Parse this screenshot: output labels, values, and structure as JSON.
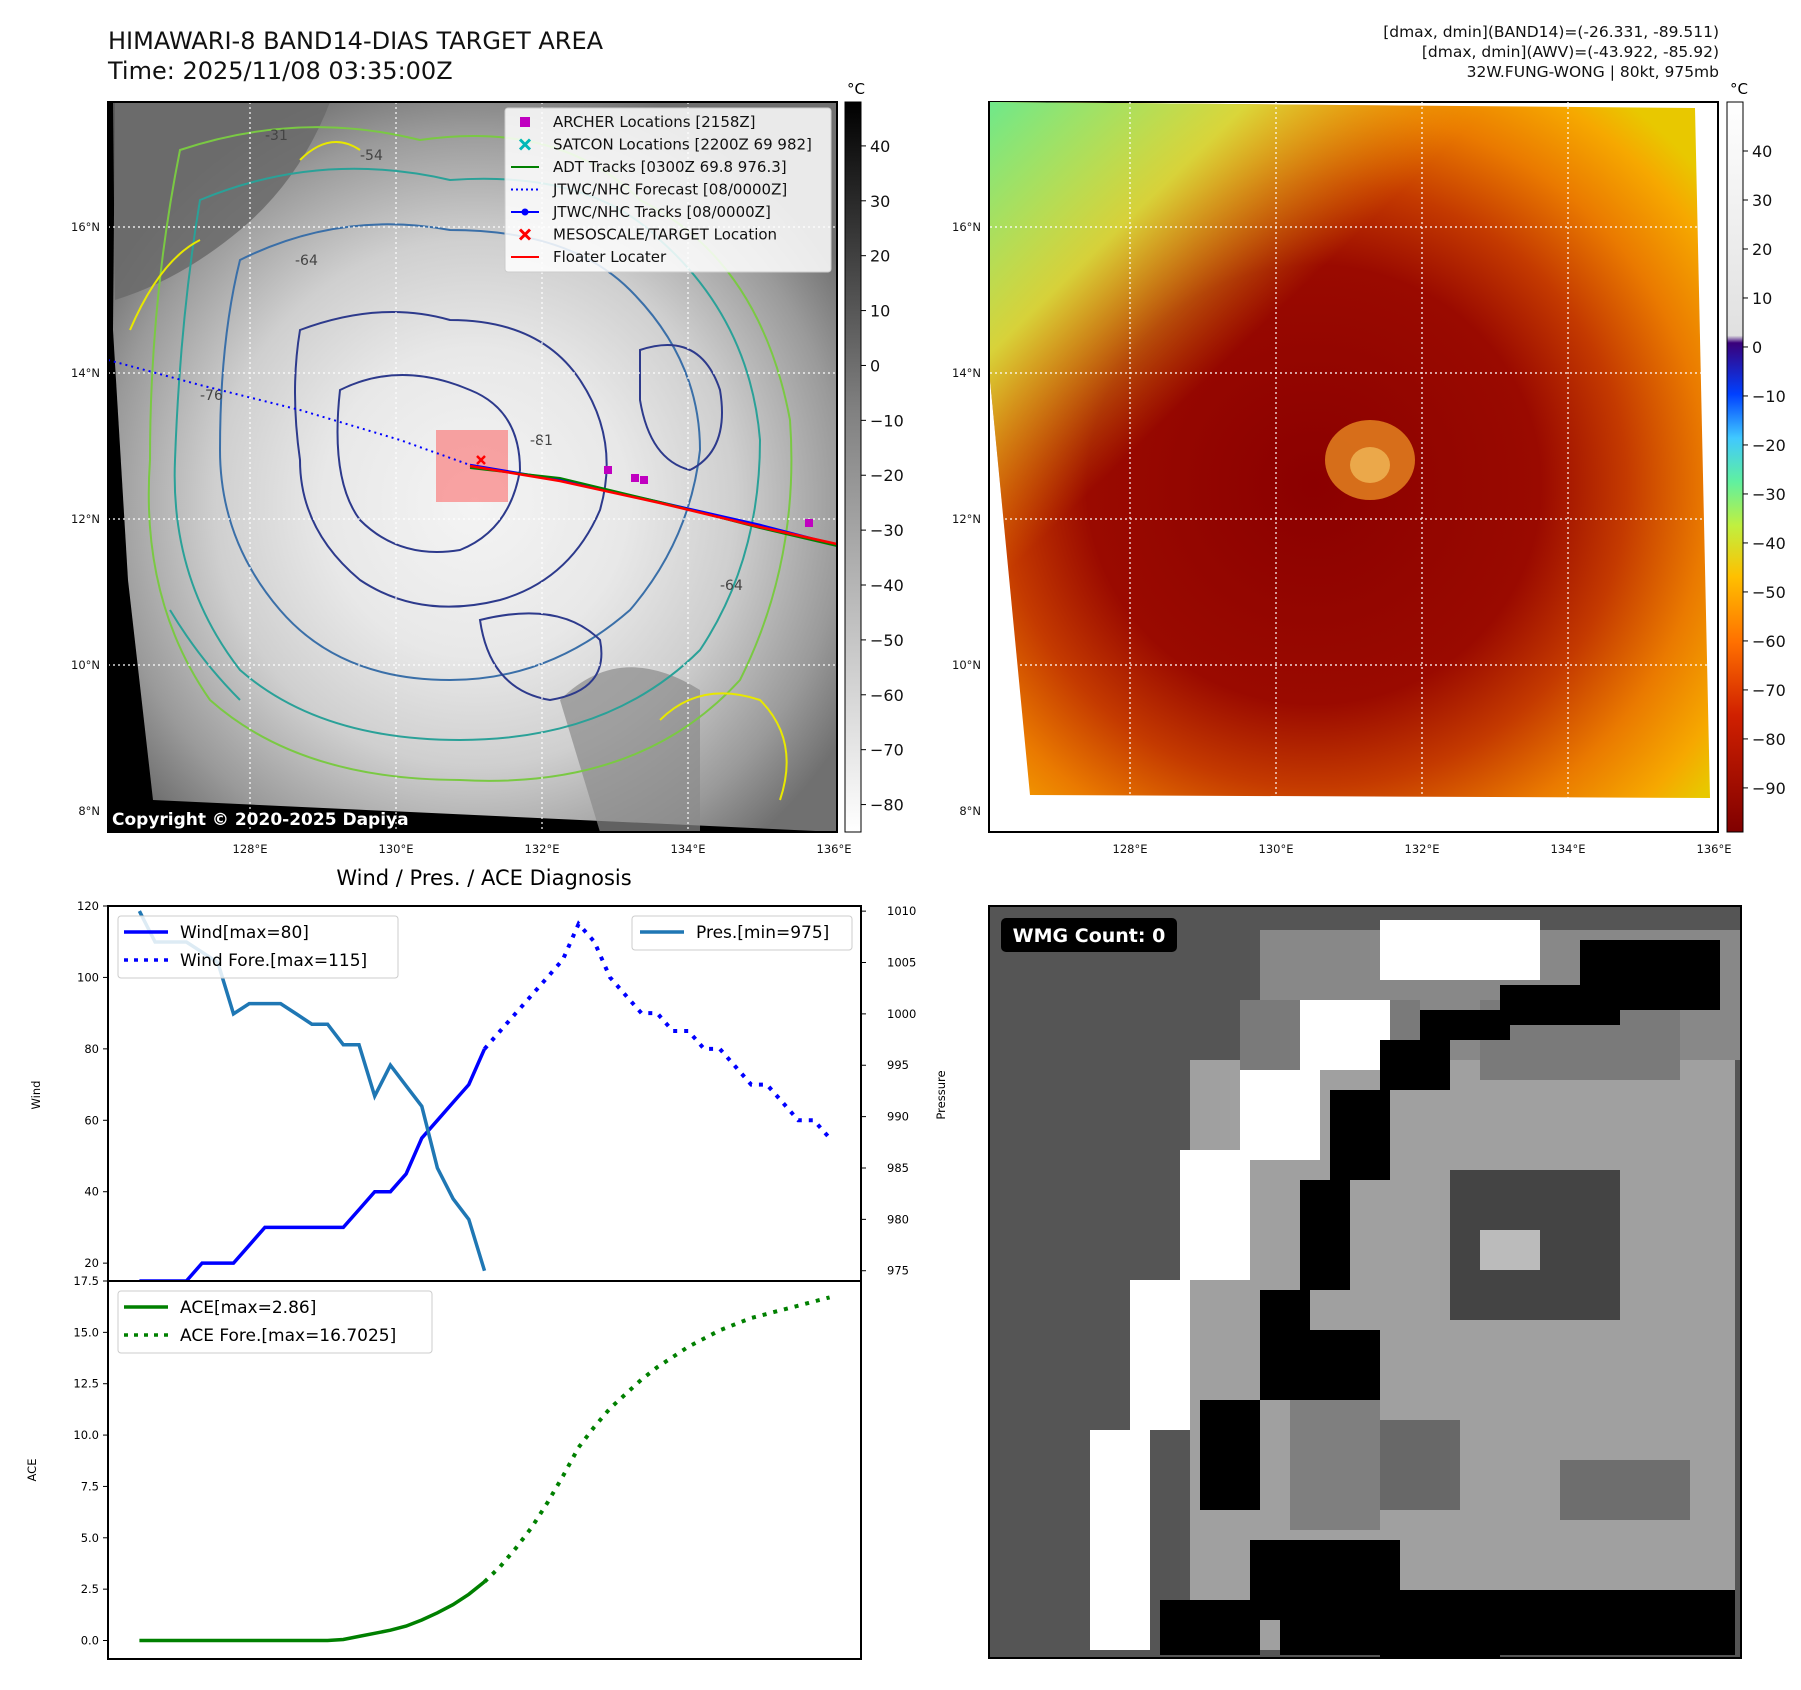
{
  "header": {
    "title": "HIMAWARI-8 BAND14-DIAS TARGET AREA",
    "time": "Time: 2025/11/08 03:35:00Z",
    "dmax_band14": "[dmax, dmin](BAND14)=(-26.331, -89.511)",
    "dmax_awv": "[dmax, dmin](AWV)=(-43.922, -85.92)",
    "storm": "32W.FUNG-WONG | 80kt, 975mb"
  },
  "copyright": "Copyright © 2020-2025 Dapiya",
  "map_axes": {
    "lat_labels": [
      "8°N",
      "10°N",
      "12°N",
      "14°N",
      "16°N"
    ],
    "lon_labels": [
      "128°E",
      "130°E",
      "132°E",
      "134°E",
      "136°E"
    ]
  },
  "colorbar_left": {
    "unit": "°C",
    "ticks": [
      "40",
      "30",
      "20",
      "10",
      "0",
      "−10",
      "−20",
      "−30",
      "−40",
      "−50",
      "−60",
      "−70",
      "−80"
    ]
  },
  "colorbar_right": {
    "unit": "°C",
    "ticks": [
      "40",
      "30",
      "20",
      "10",
      "0",
      "−10",
      "−20",
      "−30",
      "−40",
      "−50",
      "−60",
      "−70",
      "−80",
      "−90"
    ]
  },
  "legend_map": [
    {
      "label": "ARCHER Locations [2158Z]",
      "color": "#c000c0",
      "marker": "square"
    },
    {
      "label": "SATCON Locations [2200Z 69 982]",
      "color": "#00b8b8",
      "marker": "x"
    },
    {
      "label": "ADT Tracks [0300Z 69.8 976.3]",
      "color": "#008000",
      "marker": "line"
    },
    {
      "label": "JTWC/NHC Forecast [08/0000Z]",
      "color": "#0000ff",
      "marker": "dotted"
    },
    {
      "label": "JTWC/NHC Tracks [08/0000Z]",
      "color": "#0000ff",
      "marker": "line-dot"
    },
    {
      "label": "MESOSCALE/TARGET Location",
      "color": "#ff0000",
      "marker": "x"
    },
    {
      "label": "Floater Locater",
      "color": "#ff0000",
      "marker": "line"
    }
  ],
  "contour_labels": [
    "-64",
    "-54",
    "-76",
    "-81",
    "-31"
  ],
  "wmg_label": "WMG Count: 0",
  "chart_data": [
    {
      "type": "line",
      "title": "Wind / Pres. / ACE Diagnosis",
      "ylabel": "Wind",
      "y2label": "Pressure",
      "ylim": [
        15,
        120
      ],
      "y2lim": [
        974,
        1010.5
      ],
      "yticks": [
        "20",
        "40",
        "60",
        "80",
        "100",
        "120"
      ],
      "y2ticks": [
        "975",
        "980",
        "985",
        "990",
        "995",
        "1000",
        "1005",
        "1010"
      ],
      "legend_left": [
        "Wind[max=80]",
        "Wind Fore.[max=115]"
      ],
      "legend_right": [
        "Pres.[min=975]"
      ],
      "series": [
        {
          "name": "Wind[max=80]",
          "color": "#0000ff",
          "style": "solid",
          "x": [
            0,
            1,
            2,
            3,
            4,
            5,
            6,
            7,
            8,
            9,
            10,
            11,
            12,
            13,
            14,
            15,
            16,
            17,
            18,
            19,
            20,
            21,
            22
          ],
          "values": [
            15,
            15,
            15,
            15,
            20,
            20,
            20,
            25,
            30,
            30,
            30,
            30,
            30,
            30,
            35,
            40,
            40,
            45,
            55,
            60,
            65,
            70,
            80
          ]
        },
        {
          "name": "Wind Fore.[max=115]",
          "color": "#0000ff",
          "style": "dotted",
          "x": [
            22,
            23,
            24,
            25,
            26,
            27,
            28,
            29,
            30,
            31,
            32,
            33,
            34,
            35,
            36,
            37,
            38,
            39,
            40,
            41,
            42,
            43,
            44
          ],
          "values": [
            80,
            85,
            90,
            95,
            100,
            105,
            115,
            110,
            100,
            95,
            90,
            90,
            85,
            85,
            80,
            80,
            75,
            70,
            70,
            65,
            60,
            60,
            55
          ]
        },
        {
          "name": "Pres.[min=975]",
          "color": "#1f77b4",
          "style": "solid",
          "axis": "y2",
          "x": [
            0,
            1,
            2,
            3,
            4,
            5,
            6,
            7,
            8,
            9,
            10,
            11,
            12,
            13,
            14,
            15,
            16,
            17,
            18,
            19,
            20,
            21,
            22
          ],
          "values": [
            1010,
            1007,
            1007,
            1007,
            1006,
            1005,
            1000,
            1001,
            1001,
            1001,
            1000,
            999,
            999,
            997,
            997,
            992,
            995,
            993,
            991,
            985,
            982,
            980,
            975
          ]
        }
      ]
    },
    {
      "type": "line",
      "ylabel": "ACE",
      "ylim": [
        -0.9,
        17.5
      ],
      "yticks": [
        "0.0",
        "2.5",
        "5.0",
        "7.5",
        "10.0",
        "12.5",
        "15.0",
        "17.5"
      ],
      "legend": [
        "ACE[max=2.86]",
        "ACE Fore.[max=16.7025]"
      ],
      "series": [
        {
          "name": "ACE[max=2.86]",
          "color": "#008000",
          "style": "solid",
          "x": [
            0,
            1,
            2,
            3,
            4,
            5,
            6,
            7,
            8,
            9,
            10,
            11,
            12,
            13,
            14,
            15,
            16,
            17,
            18,
            19,
            20,
            21,
            22
          ],
          "values": [
            0,
            0,
            0,
            0,
            0,
            0,
            0,
            0,
            0,
            0,
            0,
            0,
            0,
            0.05,
            0.2,
            0.35,
            0.5,
            0.7,
            1.0,
            1.35,
            1.75,
            2.25,
            2.86
          ]
        },
        {
          "name": "ACE Fore.[max=16.7025]",
          "color": "#008000",
          "style": "dotted",
          "x": [
            22,
            23,
            24,
            25,
            26,
            27,
            28,
            29,
            30,
            31,
            32,
            33,
            34,
            35,
            36,
            37,
            38,
            39,
            40,
            41,
            42,
            43,
            44
          ],
          "values": [
            2.86,
            3.6,
            4.5,
            5.5,
            6.7,
            8.0,
            9.4,
            10.4,
            11.3,
            12.0,
            12.7,
            13.3,
            13.8,
            14.3,
            14.7,
            15.1,
            15.4,
            15.7,
            15.9,
            16.1,
            16.3,
            16.5,
            16.7025
          ]
        }
      ]
    }
  ]
}
